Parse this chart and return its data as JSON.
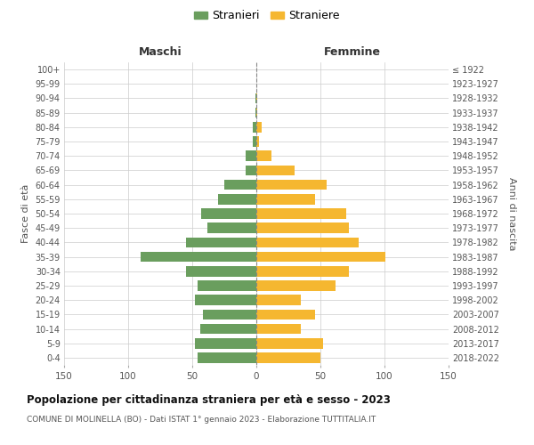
{
  "age_groups": [
    "100+",
    "95-99",
    "90-94",
    "85-89",
    "80-84",
    "75-79",
    "70-74",
    "65-69",
    "60-64",
    "55-59",
    "50-54",
    "45-49",
    "40-44",
    "35-39",
    "30-34",
    "25-29",
    "20-24",
    "15-19",
    "10-14",
    "5-9",
    "0-4"
  ],
  "birth_years": [
    "≤ 1922",
    "1923-1927",
    "1928-1932",
    "1933-1937",
    "1938-1942",
    "1943-1947",
    "1948-1952",
    "1953-1957",
    "1958-1962",
    "1963-1967",
    "1968-1972",
    "1973-1977",
    "1978-1982",
    "1983-1987",
    "1988-1992",
    "1993-1997",
    "1998-2002",
    "2003-2007",
    "2008-2012",
    "2013-2017",
    "2018-2022"
  ],
  "maschi": [
    0,
    0,
    1,
    1,
    3,
    3,
    8,
    8,
    25,
    30,
    43,
    38,
    55,
    90,
    55,
    46,
    48,
    42,
    44,
    48,
    46
  ],
  "femmine": [
    0,
    0,
    1,
    1,
    4,
    2,
    12,
    30,
    55,
    46,
    70,
    72,
    80,
    101,
    72,
    62,
    35,
    46,
    35,
    52,
    50
  ],
  "color_maschi": "#6a9e5e",
  "color_femmine": "#f5b730",
  "color_center_line": "#888888",
  "title": "Popolazione per cittadinanza straniera per età e sesso - 2023",
  "subtitle": "COMUNE DI MOLINELLA (BO) - Dati ISTAT 1° gennaio 2023 - Elaborazione TUTTITALIA.IT",
  "legend_maschi": "Stranieri",
  "legend_femmine": "Straniere",
  "xlabel_left": "Maschi",
  "xlabel_right": "Femmine",
  "ylabel_left": "Fasce di età",
  "ylabel_right": "Anni di nascita",
  "xlim": 150,
  "background_color": "#ffffff",
  "grid_color": "#cccccc"
}
